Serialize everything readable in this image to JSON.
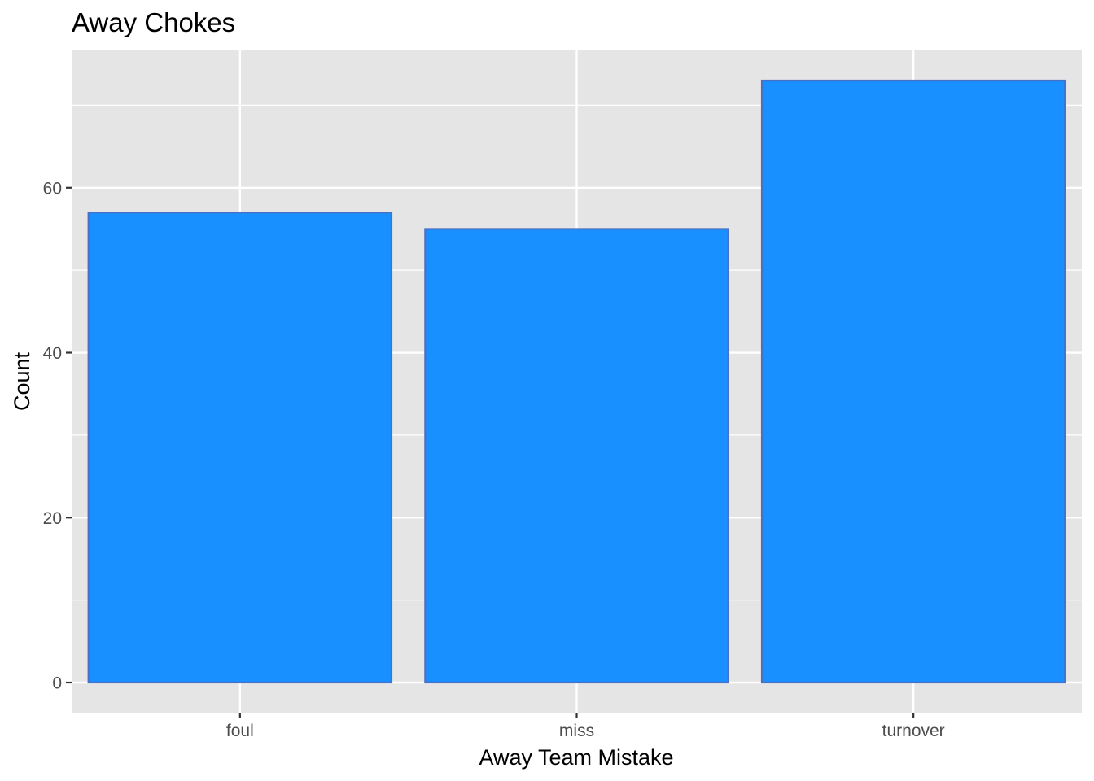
{
  "chart_data": {
    "type": "bar",
    "title": "Away Chokes",
    "xlabel": "Away Team Mistake",
    "ylabel": "Count",
    "categories": [
      "foul",
      "miss",
      "turnover"
    ],
    "values": [
      57,
      55,
      73
    ],
    "ylim": [
      -3.65,
      76.65
    ],
    "yticks": [
      0,
      20,
      40,
      60
    ],
    "grid": true,
    "legend": "none",
    "colors": {
      "bar_fill": "#1890FF",
      "bar_outline": "#4A6FC6",
      "panel_background": "#E5E5E5",
      "grid_line": "#FFFFFF"
    }
  }
}
